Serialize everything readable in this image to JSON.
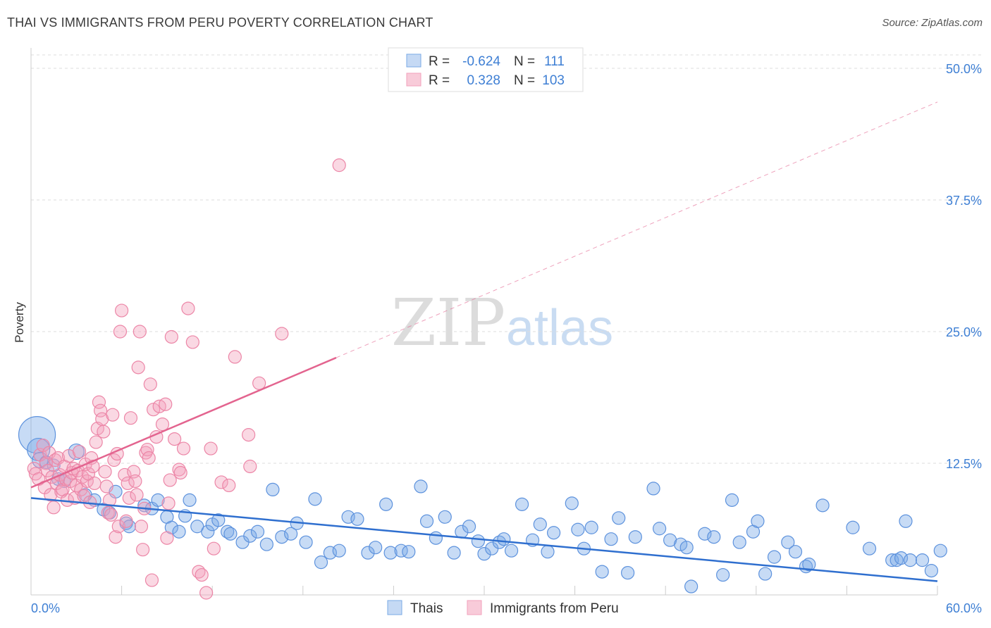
{
  "title": "THAI VS IMMIGRANTS FROM PERU POVERTY CORRELATION CHART",
  "source": "Source: ZipAtlas.com",
  "watermark": {
    "zip": "ZIP",
    "atlas": "atlas"
  },
  "colors": {
    "blue": "#7aaae6",
    "blue_line": "#2f6fcf",
    "pink": "#f2a2bc",
    "pink_line": "#e3648f",
    "axis_text": "#3e7fd4",
    "grid": "#dddddd"
  },
  "stats": [
    {
      "r_label": "R =",
      "r_value": "-0.624",
      "n_label": "N =",
      "n_value": "111"
    },
    {
      "r_label": "R =",
      "r_value": "0.328",
      "n_label": "N =",
      "n_value": "103"
    }
  ],
  "chart_data": {
    "type": "scatter",
    "title": "THAI VS IMMIGRANTS FROM PERU POVERTY CORRELATION CHART",
    "xlabel": "",
    "ylabel": "Poverty",
    "xlim": [
      0,
      60
    ],
    "ylim": [
      0,
      50
    ],
    "x_tick_labels": [
      "0.0%",
      "60.0%"
    ],
    "y_ticks": [
      12.5,
      25.0,
      37.5,
      50.0
    ],
    "y_tick_labels": [
      "12.5%",
      "25.0%",
      "37.5%",
      "50.0%"
    ],
    "grid": true,
    "legend": "bottom",
    "series": [
      {
        "name": "Thais",
        "color": "#7aaae6",
        "trend": {
          "x": [
            0,
            60
          ],
          "y": [
            9.2,
            1.3
          ],
          "solid_to": 60
        },
        "points": [
          [
            0.4,
            15.2,
            26
          ],
          [
            0.5,
            13.8,
            16
          ],
          [
            0.6,
            12.8,
            11
          ],
          [
            1.0,
            12.6,
            9
          ],
          [
            1.5,
            12.3,
            9
          ],
          [
            1.8,
            11.0,
            9
          ],
          [
            2.2,
            10.8,
            9
          ],
          [
            3.0,
            13.6,
            11
          ],
          [
            3.6,
            9.5,
            9
          ],
          [
            4.2,
            9.0,
            9
          ],
          [
            4.8,
            8.1,
            9
          ],
          [
            5.2,
            7.8,
            9
          ],
          [
            5.6,
            9.8,
            9
          ],
          [
            6.3,
            6.8,
            9
          ],
          [
            6.5,
            6.5,
            9
          ],
          [
            7.5,
            8.5,
            9
          ],
          [
            8.0,
            8.2,
            9
          ],
          [
            8.4,
            9.0,
            9
          ],
          [
            9.0,
            7.4,
            9
          ],
          [
            9.3,
            6.4,
            9
          ],
          [
            9.8,
            6.0,
            9
          ],
          [
            10.2,
            7.5,
            9
          ],
          [
            10.5,
            9.0,
            9
          ],
          [
            11.0,
            6.5,
            9
          ],
          [
            11.7,
            6.0,
            9
          ],
          [
            12.0,
            6.7,
            9
          ],
          [
            12.4,
            7.1,
            9
          ],
          [
            13.0,
            6.0,
            9
          ],
          [
            13.2,
            5.8,
            9
          ],
          [
            14.0,
            5.0,
            9
          ],
          [
            14.5,
            5.6,
            9
          ],
          [
            15.0,
            6.0,
            9
          ],
          [
            15.6,
            4.8,
            9
          ],
          [
            16.0,
            10.0,
            9
          ],
          [
            16.6,
            5.5,
            9
          ],
          [
            17.2,
            5.8,
            9
          ],
          [
            17.6,
            6.8,
            9
          ],
          [
            18.2,
            5.0,
            9
          ],
          [
            18.8,
            9.1,
            9
          ],
          [
            19.2,
            3.1,
            9
          ],
          [
            19.8,
            4.0,
            9
          ],
          [
            20.4,
            4.2,
            9
          ],
          [
            21.0,
            7.4,
            9
          ],
          [
            21.6,
            7.2,
            9
          ],
          [
            22.3,
            4.0,
            9
          ],
          [
            22.8,
            4.5,
            9
          ],
          [
            23.5,
            8.6,
            9
          ],
          [
            23.8,
            4.0,
            9
          ],
          [
            24.5,
            4.2,
            9
          ],
          [
            25.0,
            4.1,
            9
          ],
          [
            25.8,
            10.3,
            9
          ],
          [
            26.2,
            7.0,
            9
          ],
          [
            26.8,
            5.4,
            9
          ],
          [
            27.4,
            7.4,
            9
          ],
          [
            28.0,
            4.0,
            9
          ],
          [
            28.5,
            6.0,
            9
          ],
          [
            29.0,
            6.5,
            9
          ],
          [
            29.6,
            5.1,
            9
          ],
          [
            30.0,
            3.9,
            9
          ],
          [
            30.5,
            4.4,
            9
          ],
          [
            31.0,
            5.0,
            9
          ],
          [
            31.3,
            5.3,
            9
          ],
          [
            31.8,
            4.2,
            9
          ],
          [
            32.5,
            8.6,
            9
          ],
          [
            33.2,
            5.2,
            9
          ],
          [
            33.7,
            6.7,
            9
          ],
          [
            34.2,
            4.1,
            9
          ],
          [
            34.6,
            5.9,
            9
          ],
          [
            35.8,
            8.7,
            9
          ],
          [
            36.2,
            6.2,
            9
          ],
          [
            36.6,
            4.4,
            9
          ],
          [
            37.1,
            6.4,
            9
          ],
          [
            37.8,
            2.2,
            9
          ],
          [
            38.4,
            5.3,
            9
          ],
          [
            38.9,
            7.3,
            9
          ],
          [
            39.5,
            2.1,
            9
          ],
          [
            40.0,
            5.5,
            9
          ],
          [
            41.2,
            10.1,
            9
          ],
          [
            41.6,
            6.3,
            9
          ],
          [
            42.3,
            5.2,
            9
          ],
          [
            43.0,
            4.8,
            9
          ],
          [
            43.4,
            4.5,
            9
          ],
          [
            43.7,
            0.8,
            9
          ],
          [
            44.6,
            5.8,
            9
          ],
          [
            45.2,
            5.5,
            9
          ],
          [
            45.8,
            1.9,
            9
          ],
          [
            46.4,
            9.0,
            9
          ],
          [
            46.9,
            5.0,
            9
          ],
          [
            47.8,
            6.0,
            9
          ],
          [
            48.1,
            7.0,
            9
          ],
          [
            48.6,
            2.0,
            9
          ],
          [
            49.2,
            3.6,
            9
          ],
          [
            50.1,
            5.0,
            9
          ],
          [
            50.6,
            4.1,
            9
          ],
          [
            51.3,
            2.7,
            9
          ],
          [
            51.5,
            2.9,
            9
          ],
          [
            52.4,
            8.5,
            9
          ],
          [
            54.4,
            6.4,
            9
          ],
          [
            55.5,
            4.4,
            9
          ],
          [
            57.0,
            3.3,
            9
          ],
          [
            57.3,
            3.3,
            9
          ],
          [
            57.6,
            3.5,
            9
          ],
          [
            57.9,
            7.0,
            9
          ],
          [
            58.2,
            3.3,
            9
          ],
          [
            59.0,
            3.3,
            9
          ],
          [
            59.6,
            2.3,
            9
          ],
          [
            60.2,
            4.2,
            9
          ]
        ]
      },
      {
        "name": "Immigrants from Peru",
        "color": "#f2a2bc",
        "trend": {
          "x": [
            0,
            60
          ],
          "y": [
            10.2,
            46.8
          ],
          "solid_to": 20.2
        },
        "points": [
          [
            0.2,
            12.0,
            9
          ],
          [
            0.3,
            11.5,
            9
          ],
          [
            0.5,
            11.0,
            9
          ],
          [
            0.6,
            13.3,
            9
          ],
          [
            0.8,
            14.2,
            9
          ],
          [
            0.9,
            10.2,
            9
          ],
          [
            1.0,
            12.5,
            9
          ],
          [
            1.1,
            11.8,
            9
          ],
          [
            1.2,
            13.5,
            9
          ],
          [
            1.3,
            9.5,
            9
          ],
          [
            1.4,
            11.2,
            9
          ],
          [
            1.5,
            8.3,
            9
          ],
          [
            1.6,
            12.8,
            9
          ],
          [
            1.7,
            10.6,
            9
          ],
          [
            1.8,
            13.0,
            9
          ],
          [
            1.9,
            11.4,
            9
          ],
          [
            2.0,
            9.8,
            9
          ],
          [
            2.1,
            10.0,
            9
          ],
          [
            2.2,
            12.2,
            9
          ],
          [
            2.3,
            11.0,
            9
          ],
          [
            2.4,
            9.0,
            9
          ],
          [
            2.5,
            13.2,
            9
          ],
          [
            2.6,
            10.8,
            9
          ],
          [
            2.7,
            11.6,
            9
          ],
          [
            2.8,
            12.0,
            9
          ],
          [
            2.9,
            9.2,
            9
          ],
          [
            3.0,
            10.4,
            9
          ],
          [
            3.1,
            11.8,
            9
          ],
          [
            3.2,
            13.6,
            9
          ],
          [
            3.3,
            10.0,
            9
          ],
          [
            3.4,
            11.2,
            9
          ],
          [
            3.5,
            9.4,
            9
          ],
          [
            3.6,
            12.4,
            9
          ],
          [
            3.7,
            10.8,
            9
          ],
          [
            3.8,
            11.5,
            9
          ],
          [
            3.9,
            8.8,
            9
          ],
          [
            4.0,
            13.0,
            9
          ],
          [
            4.1,
            12.2,
            9
          ],
          [
            4.2,
            10.6,
            9
          ],
          [
            4.3,
            14.5,
            9
          ],
          [
            4.4,
            15.8,
            9
          ],
          [
            4.5,
            18.3,
            9
          ],
          [
            4.6,
            17.5,
            9
          ],
          [
            4.7,
            16.7,
            9
          ],
          [
            4.8,
            15.5,
            9
          ],
          [
            4.9,
            11.7,
            9
          ],
          [
            5.0,
            10.3,
            9
          ],
          [
            5.1,
            7.8,
            9
          ],
          [
            5.2,
            9.0,
            9
          ],
          [
            5.3,
            7.6,
            9
          ],
          [
            5.4,
            17.1,
            9
          ],
          [
            5.5,
            12.8,
            9
          ],
          [
            5.6,
            5.5,
            9
          ],
          [
            5.7,
            13.4,
            9
          ],
          [
            5.8,
            6.5,
            9
          ],
          [
            5.9,
            25.0,
            9
          ],
          [
            6.0,
            27.0,
            9
          ],
          [
            6.2,
            11.4,
            9
          ],
          [
            6.3,
            7.0,
            9
          ],
          [
            6.4,
            10.6,
            9
          ],
          [
            6.5,
            9.2,
            9
          ],
          [
            6.6,
            16.8,
            9
          ],
          [
            6.8,
            11.7,
            9
          ],
          [
            6.9,
            10.8,
            9
          ],
          [
            7.0,
            9.5,
            9
          ],
          [
            7.1,
            21.6,
            9
          ],
          [
            7.2,
            25.0,
            9
          ],
          [
            7.3,
            6.5,
            9
          ],
          [
            7.4,
            4.3,
            9
          ],
          [
            7.5,
            8.2,
            9
          ],
          [
            7.6,
            13.5,
            9
          ],
          [
            7.7,
            13.8,
            9
          ],
          [
            7.8,
            13.0,
            9
          ],
          [
            7.9,
            20.0,
            9
          ],
          [
            8.0,
            1.4,
            9
          ],
          [
            8.1,
            17.6,
            9
          ],
          [
            8.3,
            15.0,
            9
          ],
          [
            8.5,
            17.9,
            9
          ],
          [
            8.7,
            16.2,
            9
          ],
          [
            8.9,
            18.1,
            9
          ],
          [
            9.0,
            5.4,
            9
          ],
          [
            9.1,
            8.7,
            9
          ],
          [
            9.2,
            10.9,
            9
          ],
          [
            9.3,
            24.5,
            9
          ],
          [
            9.5,
            14.8,
            9
          ],
          [
            9.8,
            11.9,
            9
          ],
          [
            9.9,
            11.6,
            9
          ],
          [
            10.1,
            13.9,
            9
          ],
          [
            10.4,
            27.2,
            9
          ],
          [
            10.7,
            24.0,
            9
          ],
          [
            11.1,
            2.2,
            9
          ],
          [
            11.3,
            1.9,
            9
          ],
          [
            11.6,
            0.2,
            9
          ],
          [
            11.9,
            13.9,
            9
          ],
          [
            12.1,
            4.4,
            9
          ],
          [
            12.6,
            10.7,
            9
          ],
          [
            13.1,
            10.4,
            9
          ],
          [
            13.5,
            22.6,
            9
          ],
          [
            14.4,
            15.2,
            9
          ],
          [
            14.5,
            12.2,
            9
          ],
          [
            15.1,
            20.1,
            9
          ],
          [
            16.6,
            24.8,
            9
          ],
          [
            20.4,
            40.8,
            9
          ]
        ]
      }
    ]
  },
  "legend_items": [
    "Thais",
    "Immigrants from Peru"
  ]
}
